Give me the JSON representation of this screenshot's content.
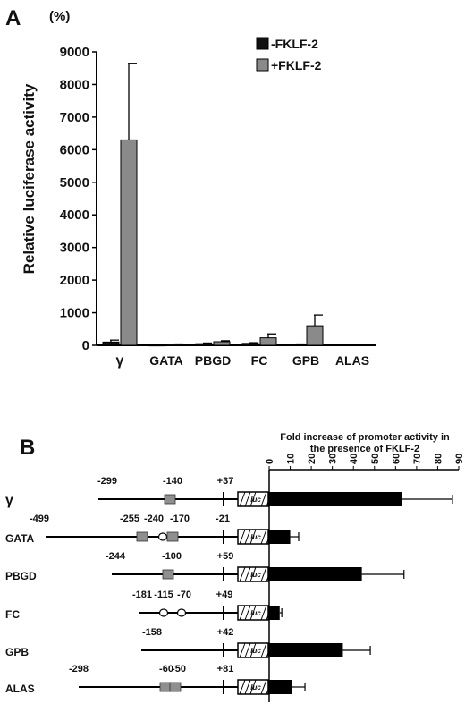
{
  "colors": {
    "minus": "#111111",
    "plus": "#8a8a8a",
    "bar_b": "#000000",
    "element": "#8f8f8f",
    "line": "#000000"
  },
  "panel_a": {
    "letter": "A",
    "unit": "(%)",
    "legend": [
      "-FKLF-2",
      "+FKLF-2"
    ]
  },
  "panel_b": {
    "letter": "B",
    "axis_title_1": "Fold increase of promoter activity in",
    "axis_title_2": "the presence of FKLF-2"
  },
  "chart_data": [
    {
      "type": "bar",
      "title": "",
      "xlabel": "",
      "ylabel": "Relative luciferase activity",
      "ylim": [
        0,
        9000
      ],
      "yticks": [
        0,
        1000,
        2000,
        3000,
        4000,
        5000,
        6000,
        7000,
        8000,
        9000
      ],
      "categories": [
        "γ",
        "GATA",
        "PBGD",
        "FC",
        "GPB",
        "ALAS"
      ],
      "series": [
        {
          "name": "-FKLF-2",
          "values": [
            100,
            10,
            50,
            60,
            30,
            15
          ],
          "errors": [
            60,
            5,
            20,
            20,
            10,
            5
          ]
        },
        {
          "name": "+FKLF-2",
          "values": [
            6300,
            30,
            110,
            230,
            600,
            20
          ],
          "errors": [
            2350,
            10,
            30,
            120,
            330,
            5
          ]
        }
      ],
      "legend_position": "top-right"
    },
    {
      "type": "bar",
      "orientation": "horizontal",
      "title": "Fold increase of promoter activity in the presence of FKLF-2",
      "xlim": [
        0,
        90
      ],
      "xticks": [
        0,
        10,
        20,
        30,
        40,
        50,
        60,
        70,
        80,
        90
      ],
      "categories": [
        "γ",
        "GATA",
        "PBGD",
        "FC",
        "GPB",
        "ALAS"
      ],
      "values": [
        63,
        10,
        44,
        5,
        35,
        11
      ],
      "errors": [
        24,
        4,
        20,
        1,
        13,
        6
      ],
      "constructs": [
        {
          "name": "γ",
          "start": "-299",
          "elements": [
            {
              "type": "box",
              "pos": "-140"
            }
          ],
          "end": "+37",
          "reporter": "luc"
        },
        {
          "name": "GATA",
          "start": "-499",
          "elements": [
            {
              "type": "box",
              "pos": "-255"
            },
            {
              "type": "circle",
              "pos": "-240"
            },
            {
              "type": "box",
              "pos": "-170"
            }
          ],
          "end": "-21",
          "reporter": "luc"
        },
        {
          "name": "PBGD",
          "start": "-244",
          "elements": [
            {
              "type": "box",
              "pos": "-100"
            }
          ],
          "end": "+59",
          "reporter": "luc"
        },
        {
          "name": "FC",
          "start": "-181",
          "elements": [
            {
              "type": "circle",
              "pos": "-115"
            },
            {
              "type": "circle",
              "pos": "-70"
            }
          ],
          "end": "+49",
          "reporter": "luc"
        },
        {
          "name": "GPB",
          "start": "-158",
          "elements": [],
          "end": "+42",
          "reporter": "luc"
        },
        {
          "name": "ALAS",
          "start": "-298",
          "elements": [
            {
              "type": "box",
              "pos": "-60"
            },
            {
              "type": "box",
              "pos": "-50"
            }
          ],
          "end": "+81",
          "reporter": "luc"
        }
      ]
    }
  ]
}
